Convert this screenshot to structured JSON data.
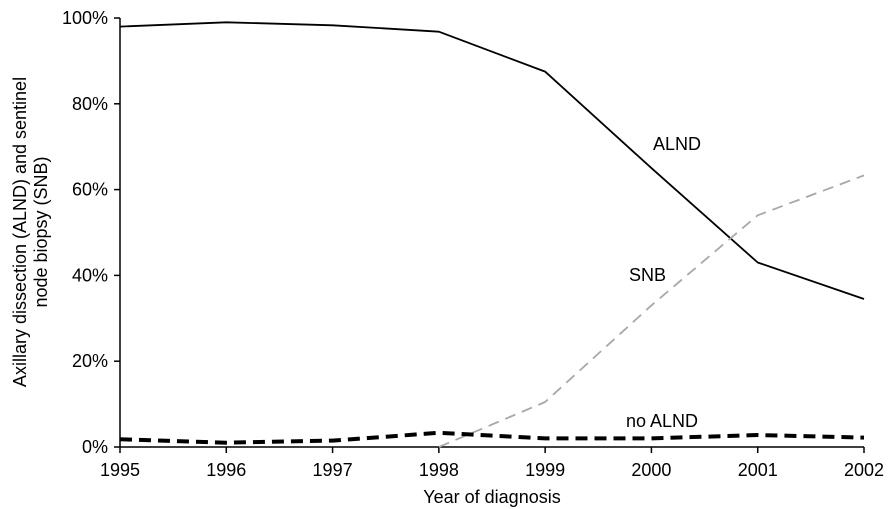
{
  "chart_data": {
    "type": "line",
    "xlabel": "Year of diagnosis",
    "ylabel_lines": [
      "Axillary dissection (ALND) and sentinel",
      "node biopsy (SNB)"
    ],
    "categories": [
      "1995",
      "1996",
      "1997",
      "1998",
      "1999",
      "2000",
      "2001",
      "2002"
    ],
    "ylim": [
      0,
      100
    ],
    "yticks": [
      "0%",
      "20%",
      "40%",
      "60%",
      "80%",
      "100%"
    ],
    "ytick_values": [
      0,
      20,
      40,
      60,
      80,
      100
    ],
    "series": [
      {
        "name": "ALND",
        "style": "solid",
        "color": "#000000",
        "values": [
          98.0,
          99.0,
          98.3,
          96.8,
          87.5,
          65.0,
          43.0,
          34.5
        ]
      },
      {
        "name": "SNB",
        "style": "dashed-thin",
        "color": "#a8a8a8",
        "values": [
          null,
          null,
          null,
          0.0,
          10.5,
          33.0,
          54.0,
          63.3
        ]
      },
      {
        "name": "no ALND",
        "style": "dashed-thick",
        "color": "#000000",
        "values": [
          1.8,
          1.0,
          1.5,
          3.3,
          2.0,
          2.0,
          2.8,
          2.2
        ]
      }
    ],
    "grid": false,
    "legend": "none"
  }
}
